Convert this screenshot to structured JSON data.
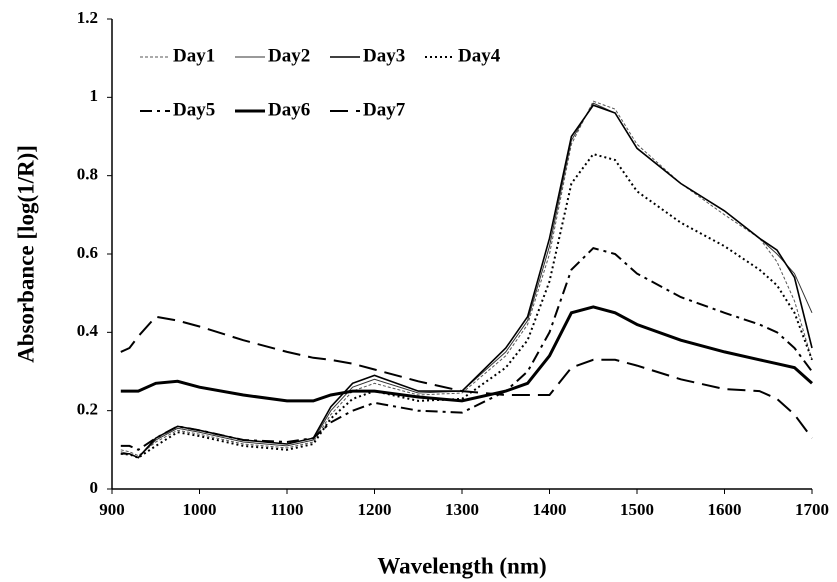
{
  "chart_data": {
    "type": "line",
    "x_label": "Wavelength (nm)",
    "y_label": "Absorbance   [log(1/R)]",
    "x": [
      910,
      920,
      930,
      950,
      975,
      1000,
      1050,
      1100,
      1130,
      1150,
      1175,
      1200,
      1250,
      1300,
      1350,
      1375,
      1400,
      1425,
      1450,
      1475,
      1500,
      1550,
      1600,
      1640,
      1660,
      1680,
      1700
    ],
    "series": [
      {
        "name": "Day1",
        "color": "#555555",
        "width": 1,
        "dash": "3,2",
        "values": [
          0.1,
          0.095,
          0.085,
          0.12,
          0.15,
          0.14,
          0.115,
          0.105,
          0.12,
          0.19,
          0.25,
          0.27,
          0.24,
          0.245,
          0.34,
          0.42,
          0.6,
          0.88,
          0.99,
          0.97,
          0.88,
          0.78,
          0.7,
          0.64,
          0.58,
          0.48,
          0.33
        ]
      },
      {
        "name": "Day2",
        "color": "#333333",
        "width": 1,
        "dash": "none",
        "values": [
          0.095,
          0.09,
          0.08,
          0.125,
          0.155,
          0.145,
          0.12,
          0.11,
          0.125,
          0.2,
          0.26,
          0.28,
          0.245,
          0.25,
          0.35,
          0.43,
          0.62,
          0.89,
          0.985,
          0.96,
          0.87,
          0.78,
          0.71,
          0.64,
          0.6,
          0.55,
          0.45
        ]
      },
      {
        "name": "Day3",
        "color": "#000000",
        "width": 1.6,
        "dash": "none",
        "values": [
          0.09,
          0.09,
          0.08,
          0.13,
          0.16,
          0.15,
          0.125,
          0.115,
          0.13,
          0.21,
          0.27,
          0.29,
          0.25,
          0.25,
          0.36,
          0.44,
          0.64,
          0.9,
          0.98,
          0.96,
          0.87,
          0.78,
          0.71,
          0.64,
          0.61,
          0.54,
          0.36
        ]
      },
      {
        "name": "Day4",
        "color": "#000000",
        "width": 2,
        "dash": "2,3",
        "values": [
          0.09,
          0.088,
          0.08,
          0.11,
          0.145,
          0.135,
          0.11,
          0.1,
          0.115,
          0.18,
          0.23,
          0.25,
          0.225,
          0.23,
          0.31,
          0.38,
          0.53,
          0.78,
          0.855,
          0.84,
          0.76,
          0.68,
          0.62,
          0.56,
          0.52,
          0.45,
          0.33
        ]
      },
      {
        "name": "Day5",
        "color": "#000000",
        "width": 2,
        "dash": "12,5,3,5",
        "values": [
          0.11,
          0.11,
          0.1,
          0.13,
          0.16,
          0.15,
          0.125,
          0.12,
          0.13,
          0.17,
          0.2,
          0.22,
          0.2,
          0.195,
          0.25,
          0.3,
          0.4,
          0.56,
          0.615,
          0.6,
          0.55,
          0.49,
          0.45,
          0.42,
          0.4,
          0.36,
          0.3
        ]
      },
      {
        "name": "Day6",
        "color": "#000000",
        "width": 3,
        "dash": "none",
        "values": [
          0.25,
          0.25,
          0.25,
          0.27,
          0.275,
          0.26,
          0.24,
          0.225,
          0.225,
          0.24,
          0.25,
          0.25,
          0.235,
          0.225,
          0.25,
          0.27,
          0.34,
          0.45,
          0.465,
          0.45,
          0.42,
          0.38,
          0.35,
          0.33,
          0.32,
          0.31,
          0.27
        ]
      },
      {
        "name": "Day7",
        "color": "#000000",
        "width": 2,
        "dash": "18,8",
        "values": [
          0.35,
          0.36,
          0.39,
          0.44,
          0.43,
          0.415,
          0.38,
          0.35,
          0.335,
          0.33,
          0.32,
          0.305,
          0.275,
          0.25,
          0.24,
          0.24,
          0.24,
          0.31,
          0.33,
          0.33,
          0.315,
          0.28,
          0.255,
          0.25,
          0.23,
          0.19,
          0.13
        ]
      }
    ],
    "xlim": [
      900,
      1700
    ],
    "xticks": [
      900,
      1000,
      1100,
      1200,
      1300,
      1400,
      1500,
      1600,
      1700
    ],
    "ylim": [
      0,
      1.2
    ],
    "yticks": [
      0,
      0.2,
      0.4,
      0.6,
      0.8,
      1,
      1.2
    ],
    "grid": false,
    "legend": "upper left"
  }
}
